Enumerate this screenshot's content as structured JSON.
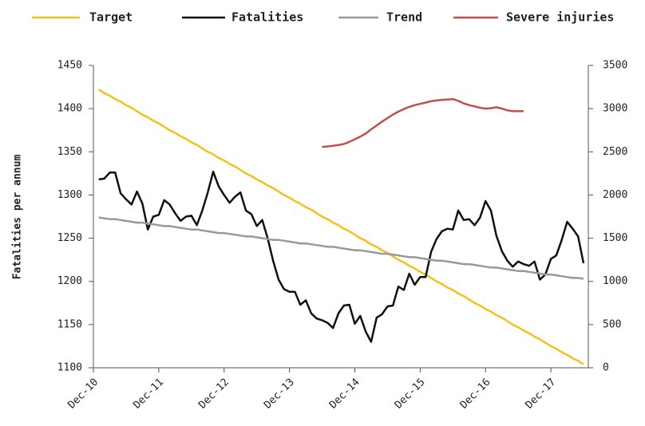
{
  "chart_data": {
    "type": "line",
    "y_label": "Fatalities per annum",
    "categories": [
      "Dec-10",
      null,
      null,
      null,
      null,
      null,
      null,
      null,
      null,
      null,
      null,
      null,
      "Dec-11",
      null,
      null,
      null,
      null,
      null,
      null,
      null,
      null,
      null,
      null,
      null,
      "Dec-12",
      null,
      null,
      null,
      null,
      null,
      null,
      null,
      null,
      null,
      null,
      null,
      "Dec-13",
      null,
      null,
      null,
      null,
      null,
      null,
      null,
      null,
      null,
      null,
      null,
      "Dec-14",
      null,
      null,
      null,
      null,
      null,
      null,
      null,
      null,
      null,
      null,
      null,
      "Dec-15",
      null,
      null,
      null,
      null,
      null,
      null,
      null,
      null,
      null,
      null,
      null,
      "Dec-16",
      null,
      null,
      null,
      null,
      null,
      null,
      null,
      null,
      null,
      null,
      null,
      "Dec-17",
      null,
      null,
      null,
      null,
      null,
      null
    ],
    "ylim": [
      1100,
      1450
    ],
    "yticks": [
      1100,
      1150,
      1200,
      1250,
      1300,
      1350,
      1400,
      1450
    ],
    "y2lim": [
      0,
      3500
    ],
    "y2ticks": [
      0,
      500,
      1000,
      1500,
      2000,
      2500,
      3000,
      3500
    ],
    "series": [
      {
        "name": "Target",
        "color": "#f5c01a",
        "values": [
          null,
          1422,
          1418,
          1415,
          1411,
          1408,
          1404,
          1401,
          1397,
          1393,
          1390,
          1386,
          1383,
          1379,
          1375,
          1372,
          1368,
          1365,
          1361,
          1358,
          1354,
          1350,
          1347,
          1343,
          1340,
          1336,
          1333,
          1329,
          1325,
          1322,
          1318,
          1315,
          1311,
          1308,
          1304,
          1300,
          1297,
          1293,
          1290,
          1286,
          1283,
          1279,
          1275,
          1272,
          1268,
          1265,
          1261,
          1258,
          1254,
          1250,
          1247,
          1243,
          1240,
          1236,
          1233,
          1229,
          1225,
          1222,
          1218,
          1215,
          1211,
          1208,
          1204,
          1200,
          1197,
          1193,
          1190,
          1186,
          1183,
          1179,
          1175,
          1172,
          1168,
          1165,
          1161,
          1158,
          1154,
          1150,
          1147,
          1143,
          1140,
          1136,
          1133,
          1129,
          1125,
          1122,
          1118,
          1115,
          1111,
          1108,
          1104
        ]
      },
      {
        "name": "Fatalities",
        "color": "#111111",
        "values": [
          null,
          1318,
          1319,
          1326,
          1326,
          1302,
          1295,
          1289,
          1304,
          1290,
          1260,
          1275,
          1277,
          1294,
          1289,
          1279,
          1270,
          1275,
          1276,
          1265,
          1282,
          1303,
          1327,
          1310,
          1300,
          1291,
          1298,
          1303,
          1282,
          1278,
          1264,
          1271,
          1250,
          1224,
          1202,
          1191,
          1188,
          1188,
          1173,
          1178,
          1163,
          1157,
          1155,
          1152,
          1146,
          1163,
          1172,
          1173,
          1151,
          1160,
          1142,
          1130,
          1158,
          1162,
          1171,
          1172,
          1194,
          1190,
          1209,
          1196,
          1205,
          1205,
          1234,
          1249,
          1258,
          1261,
          1260,
          1282,
          1271,
          1272,
          1265,
          1274,
          1293,
          1282,
          1253,
          1235,
          1224,
          1217,
          1223,
          1220,
          1218,
          1223,
          1202,
          1208,
          1226,
          1230,
          1248,
          1269,
          1261,
          1252,
          1221
        ]
      },
      {
        "name": "Trend",
        "color": "#999999",
        "values": [
          null,
          1274,
          1273,
          1272,
          1272,
          1271,
          1270,
          1269,
          1268,
          1268,
          1267,
          1266,
          1265,
          1264,
          1264,
          1263,
          1262,
          1261,
          1260,
          1260,
          1259,
          1258,
          1257,
          1256,
          1256,
          1255,
          1254,
          1253,
          1252,
          1252,
          1251,
          1250,
          1249,
          1248,
          1248,
          1247,
          1246,
          1245,
          1244,
          1244,
          1243,
          1242,
          1241,
          1240,
          1240,
          1239,
          1238,
          1237,
          1236,
          1236,
          1235,
          1234,
          1233,
          1232,
          1232,
          1231,
          1230,
          1229,
          1228,
          1228,
          1227,
          1226,
          1225,
          1224,
          1224,
          1223,
          1222,
          1221,
          1220,
          1220,
          1219,
          1218,
          1217,
          1216,
          1216,
          1215,
          1214,
          1213,
          1212,
          1212,
          1211,
          1210,
          1209,
          1208,
          1208,
          1207,
          1206,
          1205,
          1204,
          1204,
          1203
        ]
      },
      {
        "name": "Severe injuries",
        "color": "#c0504d",
        "axis": "y2",
        "values": [
          null,
          null,
          null,
          null,
          null,
          null,
          null,
          null,
          null,
          null,
          null,
          null,
          null,
          null,
          null,
          null,
          null,
          null,
          null,
          null,
          null,
          null,
          null,
          null,
          null,
          null,
          null,
          null,
          null,
          null,
          null,
          null,
          null,
          null,
          null,
          null,
          null,
          null,
          null,
          null,
          null,
          null,
          2555,
          2562,
          2570,
          2578,
          2590,
          2615,
          2645,
          2675,
          2710,
          2760,
          2805,
          2850,
          2890,
          2930,
          2965,
          2995,
          3020,
          3040,
          3055,
          3070,
          3085,
          3095,
          3100,
          3105,
          3110,
          3090,
          3060,
          3040,
          3025,
          3010,
          3000,
          3005,
          3015,
          3000,
          2980,
          2970,
          2970,
          2970,
          null,
          null,
          null,
          null,
          null,
          null,
          null,
          null,
          null,
          null,
          null
        ]
      }
    ]
  }
}
